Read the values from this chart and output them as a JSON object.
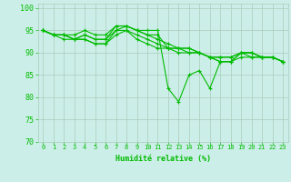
{
  "title": "",
  "xlabel": "Humidité relative (%)",
  "ylabel": "",
  "xlim": [
    -0.5,
    23.5
  ],
  "ylim": [
    70,
    101
  ],
  "yticks": [
    70,
    75,
    80,
    85,
    90,
    95,
    100
  ],
  "xticks": [
    0,
    1,
    2,
    3,
    4,
    5,
    6,
    7,
    8,
    9,
    10,
    11,
    12,
    13,
    14,
    15,
    16,
    17,
    18,
    19,
    20,
    21,
    22,
    23
  ],
  "bg_color": "#cceee8",
  "grid_color": "#aaccbb",
  "line_color": "#00bb00",
  "lines": [
    [
      95,
      94,
      94,
      93,
      94,
      93,
      93,
      96,
      96,
      95,
      95,
      95,
      82,
      79,
      85,
      86,
      82,
      88,
      88,
      90,
      89,
      89,
      89,
      88
    ],
    [
      95,
      94,
      94,
      94,
      95,
      94,
      94,
      96,
      96,
      95,
      94,
      94,
      91,
      91,
      91,
      90,
      89,
      89,
      89,
      90,
      90,
      89,
      89,
      88
    ],
    [
      95,
      94,
      94,
      93,
      94,
      93,
      93,
      95,
      96,
      95,
      94,
      93,
      92,
      91,
      91,
      90,
      89,
      89,
      89,
      90,
      90,
      89,
      89,
      88
    ],
    [
      95,
      94,
      94,
      93,
      93,
      92,
      92,
      95,
      95,
      94,
      93,
      92,
      91,
      91,
      90,
      90,
      89,
      88,
      88,
      90,
      90,
      89,
      89,
      88
    ],
    [
      95,
      94,
      93,
      93,
      93,
      92,
      92,
      94,
      95,
      93,
      92,
      91,
      91,
      90,
      90,
      90,
      89,
      88,
      88,
      89,
      89,
      89,
      89,
      88
    ]
  ]
}
